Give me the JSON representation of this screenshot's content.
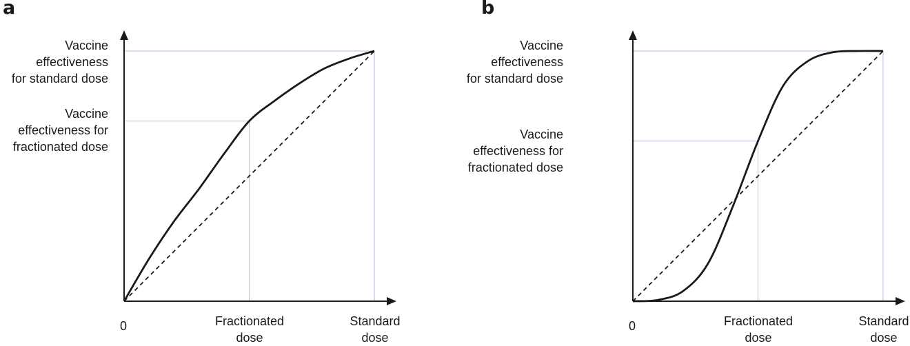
{
  "chart_data": [
    {
      "panel_label": "a",
      "type": "line",
      "curve_shape": "concave",
      "xlim": [
        0,
        1
      ],
      "ylim": [
        0,
        1
      ],
      "x_ticks": [
        {
          "x": 0,
          "label": "0"
        },
        {
          "x": 0.5,
          "label": "Fractionated\ndose"
        },
        {
          "x": 1,
          "label": "Standard\ndose"
        }
      ],
      "y_ticks": [
        {
          "y": 1,
          "label": "Vaccine\neffectiveness\nfor standard dose"
        },
        {
          "y": 0.72,
          "label": "Vaccine\neffectiveness for\nfractionated dose"
        }
      ],
      "guides": {
        "fractionated": [
          0.5,
          0.72
        ],
        "standard": [
          1,
          1
        ]
      },
      "series": [
        {
          "style": "solid",
          "x": [
            0,
            0.1,
            0.2,
            0.3,
            0.4,
            0.5,
            0.6,
            0.7,
            0.8,
            0.9,
            1.0
          ],
          "y": [
            0,
            0.17,
            0.32,
            0.45,
            0.59,
            0.72,
            0.8,
            0.87,
            0.93,
            0.97,
            1.0
          ]
        },
        {
          "style": "dashed",
          "x": [
            0,
            1
          ],
          "y": [
            0,
            1
          ]
        }
      ]
    },
    {
      "panel_label": "b",
      "type": "line",
      "curve_shape": "sigmoid",
      "xlim": [
        0,
        1
      ],
      "ylim": [
        0,
        1
      ],
      "x_ticks": [
        {
          "x": 0,
          "label": "0"
        },
        {
          "x": 0.5,
          "label": "Fractionated\ndose"
        },
        {
          "x": 1,
          "label": "Standard\ndose"
        }
      ],
      "y_ticks": [
        {
          "y": 1,
          "label": "Vaccine\neffectiveness\nfor standard dose"
        },
        {
          "y": 0.64,
          "label": "Vaccine\neffectiveness for\nfractionated dose"
        }
      ],
      "guides": {
        "fractionated": [
          0.5,
          0.64
        ],
        "standard": [
          1,
          1
        ]
      },
      "series": [
        {
          "style": "solid",
          "x": [
            0,
            0.1,
            0.2,
            0.3,
            0.4,
            0.5,
            0.6,
            0.7,
            0.8,
            0.9,
            1.0
          ],
          "y": [
            0,
            0.005,
            0.04,
            0.15,
            0.38,
            0.64,
            0.86,
            0.96,
            0.995,
            1.0,
            1.0
          ]
        },
        {
          "style": "dashed",
          "x": [
            0,
            1
          ],
          "y": [
            0,
            1
          ]
        }
      ]
    }
  ]
}
